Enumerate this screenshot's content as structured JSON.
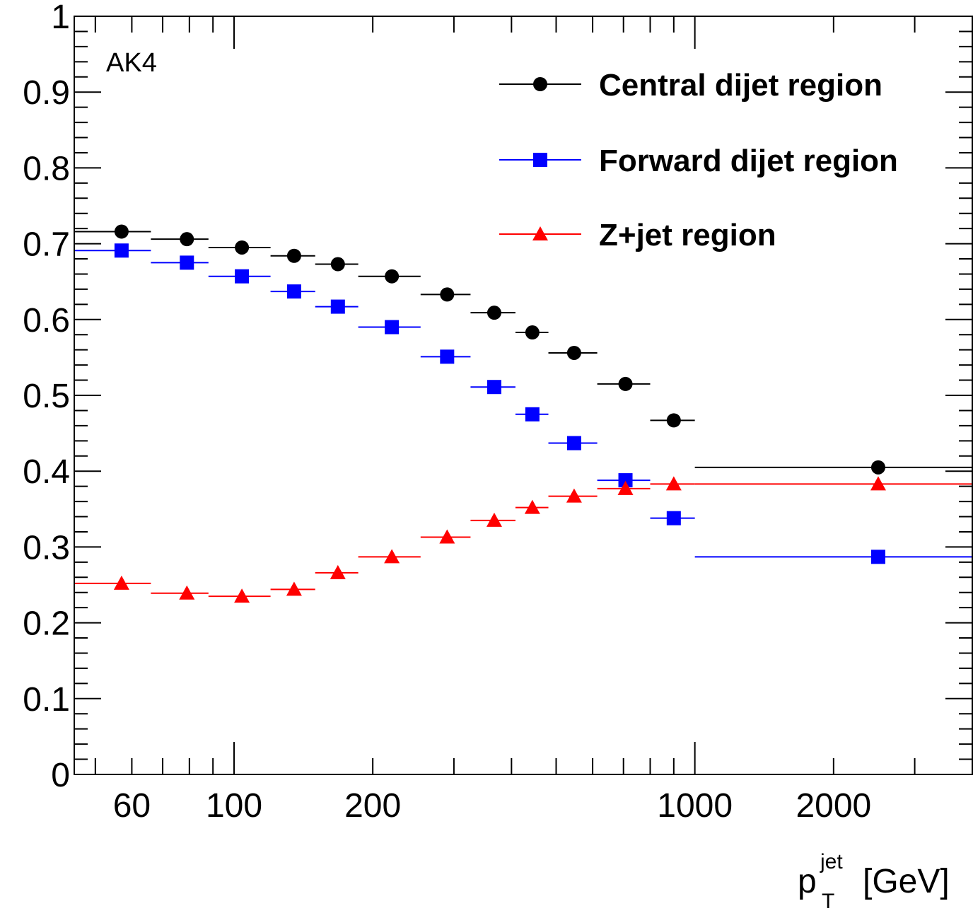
{
  "chart_data": {
    "type": "scatter",
    "title": "",
    "annotation": "AK4",
    "xlabel": {
      "base": "p",
      "sup": "jet",
      "sub": "T",
      "unit": "[GeV]"
    },
    "ylabel": "",
    "x_scale": "log",
    "xlim": [
      45,
      4000
    ],
    "ylim": [
      0,
      1
    ],
    "x_tick_labels": [
      "60",
      "100",
      "200",
      "1000",
      "2000"
    ],
    "x_tick_values": [
      60,
      100,
      200,
      1000,
      2000
    ],
    "y_tick_labels": [
      "0",
      "0.1",
      "0.2",
      "0.3",
      "0.4",
      "0.5",
      "0.6",
      "0.7",
      "0.8",
      "0.9",
      "1"
    ],
    "y_tick_values": [
      0,
      0.1,
      0.2,
      0.3,
      0.4,
      0.5,
      0.6,
      0.7,
      0.8,
      0.9,
      1
    ],
    "grid": false,
    "legend_position": "top-right",
    "bins": [
      [
        45,
        66
      ],
      [
        66,
        88
      ],
      [
        88,
        120
      ],
      [
        120,
        150
      ],
      [
        150,
        186
      ],
      [
        186,
        254
      ],
      [
        254,
        326
      ],
      [
        326,
        408
      ],
      [
        408,
        481
      ],
      [
        481,
        614
      ],
      [
        614,
        800
      ],
      [
        800,
        1000
      ],
      [
        1000,
        4000
      ]
    ],
    "series": [
      {
        "name": "Central dijet region",
        "color": "#000000",
        "marker": "circle",
        "x": [
          57,
          79,
          104,
          135,
          168,
          220,
          290,
          367,
          444,
          547,
          707,
          900,
          2500
        ],
        "y": [
          0.716,
          0.706,
          0.695,
          0.684,
          0.673,
          0.657,
          0.633,
          0.609,
          0.583,
          0.556,
          0.515,
          0.467,
          0.405
        ]
      },
      {
        "name": "Forward dijet region",
        "color": "#0000ff",
        "marker": "square",
        "x": [
          57,
          79,
          104,
          135,
          168,
          220,
          290,
          367,
          444,
          547,
          707,
          900,
          2500
        ],
        "y": [
          0.691,
          0.675,
          0.657,
          0.637,
          0.617,
          0.59,
          0.551,
          0.511,
          0.475,
          0.437,
          0.388,
          0.338,
          0.287
        ]
      },
      {
        "name": "Z+jet region",
        "color": "#ff0000",
        "marker": "triangle",
        "x": [
          57,
          79,
          104,
          135,
          168,
          220,
          290,
          367,
          444,
          547,
          707,
          900,
          2500
        ],
        "y": [
          0.252,
          0.239,
          0.235,
          0.244,
          0.266,
          0.287,
          0.313,
          0.335,
          0.352,
          0.367,
          0.377,
          0.383,
          0.383
        ]
      }
    ]
  }
}
